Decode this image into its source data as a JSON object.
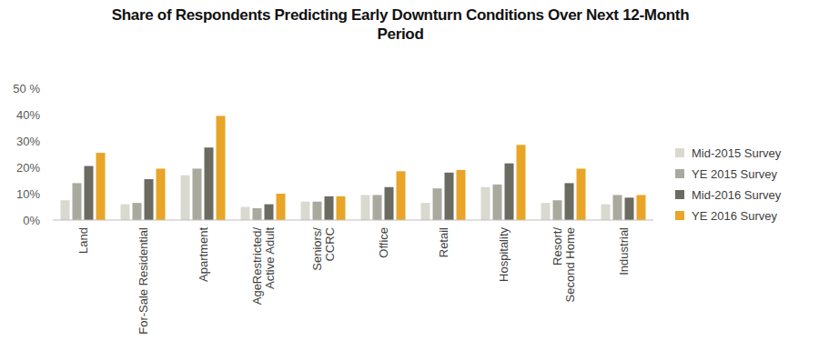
{
  "chart_data": {
    "type": "bar",
    "title": "Share of Respondents Predicting Early Downturn Conditions Over Next 12-Month Period",
    "categories": [
      "Land",
      "For-Sale Residential",
      "Apartment",
      "AgeRestricted/ Active Adult",
      "Seniors/ CCRC",
      "Office",
      "Retail",
      "Hospitality",
      "Resort/ Second Home",
      "Industrial"
    ],
    "series": [
      {
        "name": "Mid-2015 Survey",
        "color": "#d9d9cf",
        "values": [
          7.5,
          6,
          17,
          5,
          7,
          9.5,
          6.5,
          12.5,
          6.5,
          6
        ]
      },
      {
        "name": "YE 2015 Survey",
        "color": "#a9aa9d",
        "values": [
          14,
          6.5,
          19.5,
          4.5,
          7,
          9.5,
          12,
          13.5,
          7.5,
          9.5
        ]
      },
      {
        "name": "Mid-2016 Survey",
        "color": "#6b6b61",
        "values": [
          20.5,
          15.5,
          27.5,
          6,
          9,
          12.5,
          18,
          21.5,
          14,
          8.5
        ]
      },
      {
        "name": "YE 2016 Survey",
        "color": "#e8a527",
        "values": [
          25.5,
          19.5,
          39.5,
          10,
          9,
          18.5,
          19,
          28.5,
          19.5,
          9.5
        ]
      }
    ],
    "ylim": [
      0,
      50
    ],
    "yticks": [
      {
        "value": 0,
        "label": "0%"
      },
      {
        "value": 10,
        "label": "10%"
      },
      {
        "value": 20,
        "label": "20%"
      },
      {
        "value": 30,
        "label": "30%"
      },
      {
        "value": 40,
        "label": "40%"
      },
      {
        "value": 50,
        "label": "50 %"
      }
    ],
    "grid": false,
    "legend": "right"
  }
}
